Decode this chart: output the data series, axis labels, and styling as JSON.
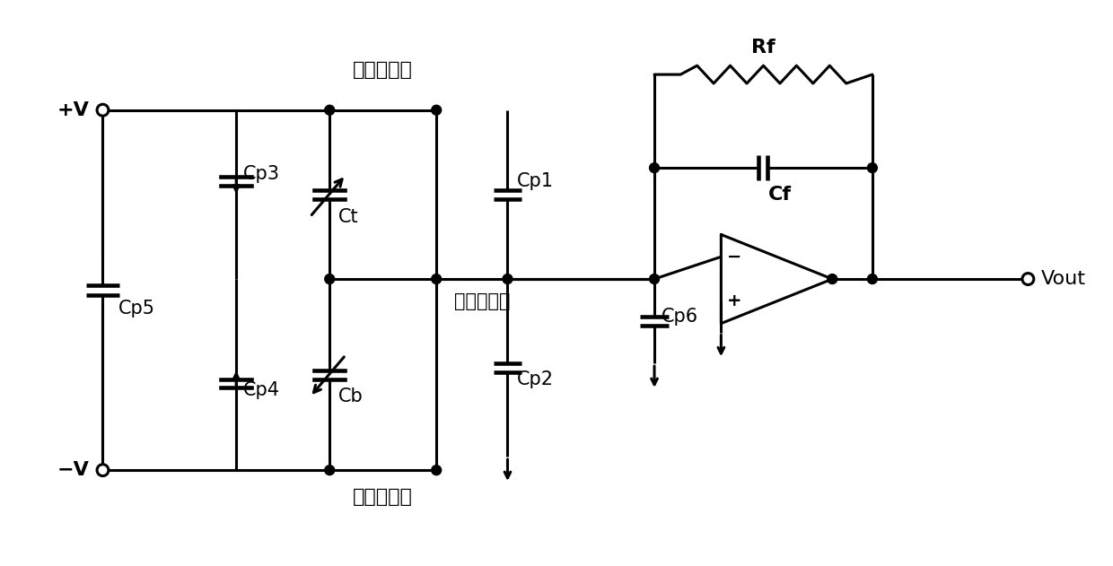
{
  "bg_color": "#ffffff",
  "line_color": "#000000",
  "lw": 2.2,
  "fs": 15,
  "labels": {
    "plus_v": "+V",
    "minus_v": "−V",
    "cp3": "Cp3",
    "cp4": "Cp4",
    "cp5": "Cp5",
    "ct": "Ct",
    "cb": "Cb",
    "cp1": "Cp1",
    "cp2": "Cp2",
    "cp6": "Cp6",
    "cf": "Cf",
    "rf": "Rf",
    "vout": "Vout",
    "upper_plate": "上固定极板",
    "lower_plate": "下固定极板",
    "movable_mass": "可动质量快",
    "minus_sign": "−",
    "plus_sign": "+"
  }
}
